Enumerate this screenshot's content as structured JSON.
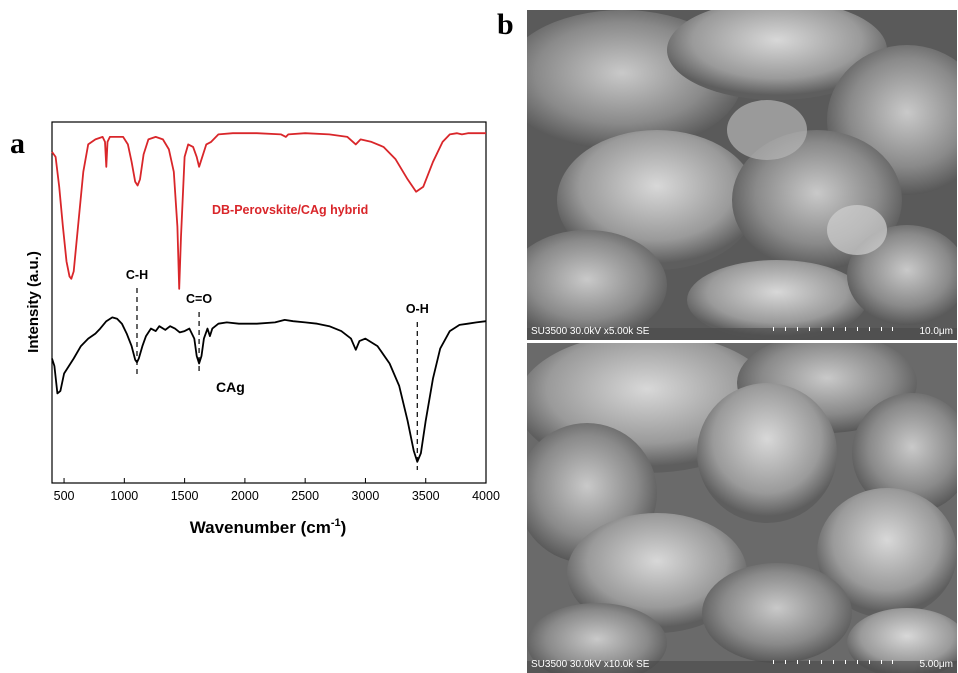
{
  "panels": {
    "a_label": "a",
    "b_label": "b"
  },
  "chart_data": {
    "type": "line",
    "xlabel": "Wavenumber (cm",
    "xlabel_sup": "-1",
    "xlabel_end": ")",
    "ylabel": "Intensity (a.u.)",
    "xlim": [
      400,
      4000
    ],
    "x_ticks": [
      500,
      1000,
      1500,
      2000,
      2500,
      3000,
      3500,
      4000
    ],
    "grid": false,
    "series": [
      {
        "name": "DB-Perovskite/CAg hybrid",
        "color": "#d9262a",
        "points": [
          [
            400,
            0.88
          ],
          [
            430,
            0.86
          ],
          [
            460,
            0.74
          ],
          [
            490,
            0.58
          ],
          [
            520,
            0.44
          ],
          [
            545,
            0.38
          ],
          [
            560,
            0.37
          ],
          [
            580,
            0.4
          ],
          [
            620,
            0.6
          ],
          [
            660,
            0.8
          ],
          [
            700,
            0.91
          ],
          [
            760,
            0.93
          ],
          [
            820,
            0.94
          ],
          [
            840,
            0.92
          ],
          [
            850,
            0.82
          ],
          [
            860,
            0.92
          ],
          [
            880,
            0.94
          ],
          [
            940,
            0.94
          ],
          [
            990,
            0.94
          ],
          [
            1030,
            0.91
          ],
          [
            1060,
            0.84
          ],
          [
            1090,
            0.76
          ],
          [
            1110,
            0.745
          ],
          [
            1130,
            0.77
          ],
          [
            1160,
            0.87
          ],
          [
            1200,
            0.93
          ],
          [
            1260,
            0.94
          ],
          [
            1320,
            0.93
          ],
          [
            1370,
            0.89
          ],
          [
            1410,
            0.8
          ],
          [
            1440,
            0.58
          ],
          [
            1455,
            0.33
          ],
          [
            1470,
            0.54
          ],
          [
            1500,
            0.86
          ],
          [
            1530,
            0.91
          ],
          [
            1570,
            0.9
          ],
          [
            1600,
            0.86
          ],
          [
            1620,
            0.82
          ],
          [
            1640,
            0.85
          ],
          [
            1680,
            0.91
          ],
          [
            1720,
            0.92
          ],
          [
            1780,
            0.95
          ],
          [
            1900,
            0.955
          ],
          [
            2100,
            0.955
          ],
          [
            2300,
            0.95
          ],
          [
            2340,
            0.94
          ],
          [
            2360,
            0.95
          ],
          [
            2500,
            0.955
          ],
          [
            2700,
            0.95
          ],
          [
            2850,
            0.94
          ],
          [
            2920,
            0.91
          ],
          [
            2960,
            0.93
          ],
          [
            3050,
            0.92
          ],
          [
            3150,
            0.9
          ],
          [
            3250,
            0.85
          ],
          [
            3350,
            0.77
          ],
          [
            3420,
            0.72
          ],
          [
            3480,
            0.74
          ],
          [
            3560,
            0.84
          ],
          [
            3640,
            0.92
          ],
          [
            3700,
            0.95
          ],
          [
            3760,
            0.955
          ],
          [
            3800,
            0.95
          ],
          [
            3850,
            0.955
          ],
          [
            4000,
            0.955
          ]
        ]
      },
      {
        "name": "CAg",
        "color": "#000000",
        "points": [
          [
            400,
            0.05
          ],
          [
            420,
            0.02
          ],
          [
            445,
            -0.09
          ],
          [
            470,
            -0.08
          ],
          [
            500,
            -0.01
          ],
          [
            540,
            0.02
          ],
          [
            580,
            0.05
          ],
          [
            640,
            0.1
          ],
          [
            700,
            0.13
          ],
          [
            760,
            0.15
          ],
          [
            800,
            0.17
          ],
          [
            850,
            0.2
          ],
          [
            900,
            0.215
          ],
          [
            940,
            0.21
          ],
          [
            980,
            0.19
          ],
          [
            1020,
            0.15
          ],
          [
            1060,
            0.1
          ],
          [
            1090,
            0.045
          ],
          [
            1105,
            0.035
          ],
          [
            1120,
            0.05
          ],
          [
            1150,
            0.1
          ],
          [
            1180,
            0.14
          ],
          [
            1220,
            0.17
          ],
          [
            1260,
            0.16
          ],
          [
            1290,
            0.18
          ],
          [
            1340,
            0.165
          ],
          [
            1380,
            0.18
          ],
          [
            1420,
            0.17
          ],
          [
            1460,
            0.155
          ],
          [
            1500,
            0.16
          ],
          [
            1540,
            0.17
          ],
          [
            1580,
            0.13
          ],
          [
            1600,
            0.06
          ],
          [
            1620,
            0.03
          ],
          [
            1640,
            0.06
          ],
          [
            1660,
            0.13
          ],
          [
            1690,
            0.17
          ],
          [
            1710,
            0.14
          ],
          [
            1730,
            0.17
          ],
          [
            1780,
            0.19
          ],
          [
            1850,
            0.195
          ],
          [
            1950,
            0.19
          ],
          [
            2100,
            0.19
          ],
          [
            2250,
            0.195
          ],
          [
            2330,
            0.205
          ],
          [
            2400,
            0.2
          ],
          [
            2500,
            0.195
          ],
          [
            2600,
            0.19
          ],
          [
            2700,
            0.18
          ],
          [
            2800,
            0.16
          ],
          [
            2880,
            0.13
          ],
          [
            2920,
            0.085
          ],
          [
            2950,
            0.12
          ],
          [
            3000,
            0.13
          ],
          [
            3100,
            0.1
          ],
          [
            3200,
            0.03
          ],
          [
            3280,
            -0.06
          ],
          [
            3350,
            -0.2
          ],
          [
            3400,
            -0.32
          ],
          [
            3430,
            -0.365
          ],
          [
            3460,
            -0.33
          ],
          [
            3500,
            -0.2
          ],
          [
            3560,
            -0.03
          ],
          [
            3620,
            0.09
          ],
          [
            3700,
            0.16
          ],
          [
            3780,
            0.185
          ],
          [
            3850,
            0.19
          ],
          [
            3920,
            0.195
          ],
          [
            4000,
            0.2
          ]
        ]
      }
    ],
    "annotations": [
      {
        "label": "C-H",
        "x": 1105
      },
      {
        "label": "C=O",
        "x": 1620
      },
      {
        "label": "O-H",
        "x": 3430
      }
    ]
  },
  "sem_images": [
    {
      "info": "SU3500 30.0kV x5.00k SE",
      "scale": "10.0μm"
    },
    {
      "info": "SU3500 30.0kV x10.0k SE",
      "scale": "5.00μm"
    }
  ]
}
